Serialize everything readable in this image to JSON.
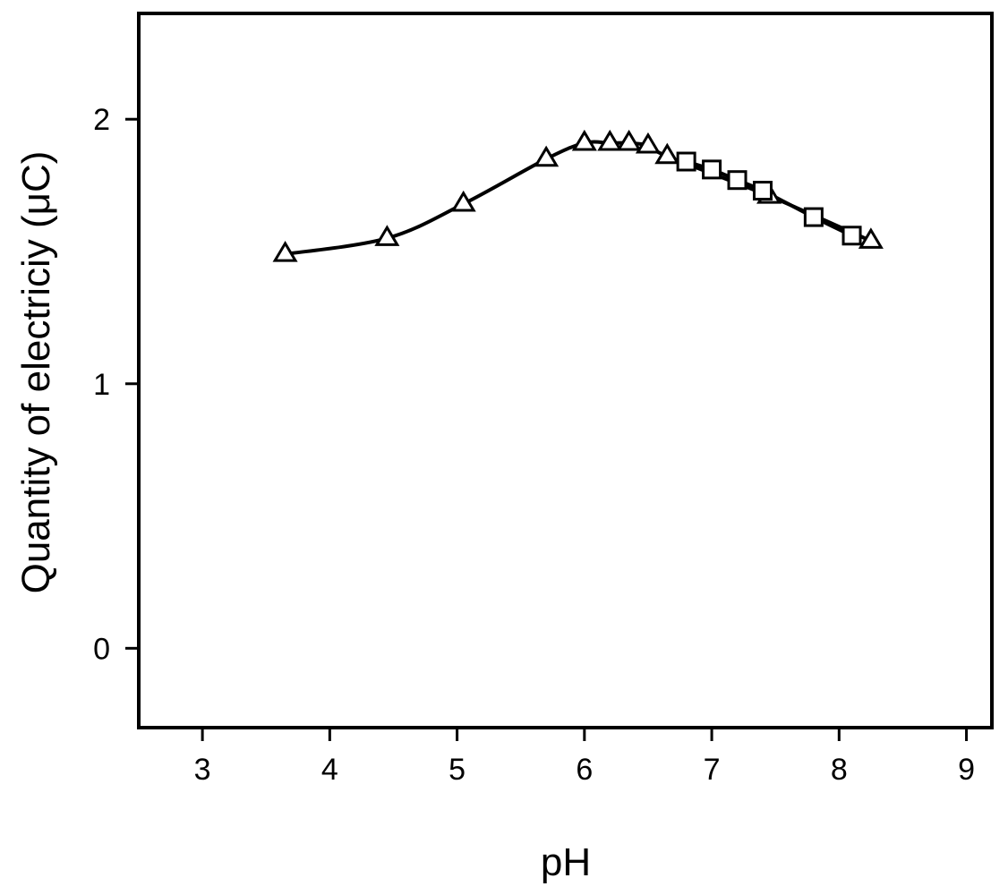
{
  "chart_data": {
    "type": "line",
    "title": "",
    "xlabel": "pH",
    "ylabel": "Quantity of electriciy (μC)",
    "xlim": [
      2.5,
      9.2
    ],
    "ylim": [
      -0.3,
      2.4
    ],
    "xticks": [
      3,
      4,
      5,
      6,
      7,
      8,
      9
    ],
    "yticks": [
      0,
      1,
      2
    ],
    "grid": false,
    "series": [
      {
        "marker": "triangle",
        "x": [
          3.65,
          4.45,
          5.05,
          5.7,
          6.0,
          6.2,
          6.35,
          6.5,
          6.65,
          7.45,
          8.25
        ],
        "y": [
          1.49,
          1.55,
          1.68,
          1.85,
          1.91,
          1.91,
          1.91,
          1.9,
          1.86,
          1.71,
          1.54
        ]
      },
      {
        "marker": "square",
        "x": [
          6.8,
          7.0,
          7.2,
          7.4,
          7.8,
          8.1
        ],
        "y": [
          1.84,
          1.81,
          1.77,
          1.73,
          1.63,
          1.56
        ]
      }
    ],
    "colors": {
      "line": "#000000",
      "marker_fill": "#ffffff",
      "background": "#ffffff"
    }
  }
}
